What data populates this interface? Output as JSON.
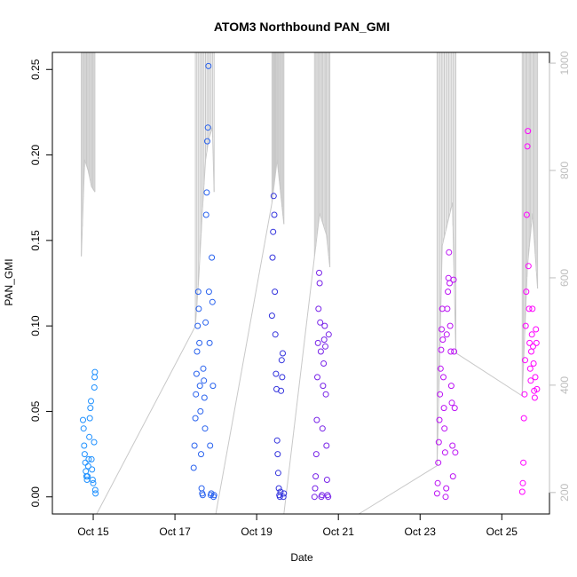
{
  "chart_data": {
    "type": "scatter",
    "title": "ATOM3 Northbound PAN_GMI",
    "xlabel": "Date",
    "ylabel": "PAN_GMI",
    "x_tick_labels": [
      "Oct 15",
      "Oct 17",
      "Oct 19",
      "Oct 21",
      "Oct 23",
      "Oct 25"
    ],
    "x_tick_dates": [
      "2016-10-15",
      "2016-10-17",
      "2016-10-19",
      "2016-10-21",
      "2016-10-23",
      "2016-10-25"
    ],
    "xlim": [
      "2016-10-14 00:00",
      "2016-10-26 04:00"
    ],
    "ylim": [
      -0.01,
      0.26
    ],
    "y_ticks": [
      "0.00",
      "0.05",
      "0.10",
      "0.15",
      "0.20",
      "0.25"
    ],
    "y2_ticks": [
      "200",
      "400",
      "600",
      "800",
      "1000"
    ],
    "y2lim": [
      1020,
      160
    ],
    "y2_reversed": true,
    "grid": false,
    "legend": "none",
    "colors": {
      "series_start": "#1e90ff",
      "series_mid": "#3333dd",
      "series_end": "#ff00ff",
      "altitude": "#c8c8c8"
    },
    "series": [
      {
        "points": [
          [
            "2016-10-14 18:00",
            0.045
          ],
          [
            "2016-10-14 18:20",
            0.04
          ],
          [
            "2016-10-14 18:40",
            0.03
          ],
          [
            "2016-10-14 19:00",
            0.025
          ],
          [
            "2016-10-14 19:20",
            0.02
          ],
          [
            "2016-10-14 19:40",
            0.015
          ],
          [
            "2016-10-14 20:00",
            0.012
          ],
          [
            "2016-10-14 20:20",
            0.01
          ],
          [
            "2016-10-14 20:40",
            0.012
          ],
          [
            "2016-10-14 21:00",
            0.018
          ],
          [
            "2016-10-14 21:20",
            0.022
          ],
          [
            "2016-10-14 21:40",
            0.035
          ],
          [
            "2016-10-14 22:00",
            0.046
          ],
          [
            "2016-10-14 22:20",
            0.052
          ],
          [
            "2016-10-14 22:40",
            0.056
          ],
          [
            "2016-10-14 23:00",
            0.022
          ],
          [
            "2016-10-14 23:20",
            0.016
          ],
          [
            "2016-10-14 23:40",
            0.01
          ],
          [
            "2016-10-15 00:00",
            0.008
          ],
          [
            "2016-10-15 00:30",
            0.032
          ],
          [
            "2016-10-15 00:40",
            0.064
          ],
          [
            "2016-10-15 00:50",
            0.07
          ],
          [
            "2016-10-15 01:00",
            0.073
          ],
          [
            "2016-10-15 01:10",
            0.004
          ],
          [
            "2016-10-15 01:20",
            0.002
          ]
        ]
      },
      {
        "points": [
          [
            "2016-10-17 11:00",
            0.017
          ],
          [
            "2016-10-17 11:30",
            0.03
          ],
          [
            "2016-10-17 12:00",
            0.046
          ],
          [
            "2016-10-17 12:20",
            0.06
          ],
          [
            "2016-10-17 12:40",
            0.072
          ],
          [
            "2016-10-17 13:00",
            0.085
          ],
          [
            "2016-10-17 13:20",
            0.1
          ],
          [
            "2016-10-17 13:40",
            0.12
          ],
          [
            "2016-10-17 14:00",
            0.11
          ],
          [
            "2016-10-17 14:20",
            0.09
          ],
          [
            "2016-10-17 14:40",
            0.065
          ],
          [
            "2016-10-17 15:00",
            0.05
          ],
          [
            "2016-10-17 15:20",
            0.025
          ],
          [
            "2016-10-17 15:40",
            0.005
          ],
          [
            "2016-10-17 16:00",
            0.002
          ],
          [
            "2016-10-17 16:20",
            0.001
          ],
          [
            "2016-10-17 16:40",
            0.075
          ],
          [
            "2016-10-17 17:00",
            0.068
          ],
          [
            "2016-10-17 17:20",
            0.058
          ],
          [
            "2016-10-17 17:40",
            0.04
          ],
          [
            "2016-10-17 18:00",
            0.102
          ],
          [
            "2016-10-17 18:20",
            0.165
          ],
          [
            "2016-10-17 18:40",
            0.178
          ],
          [
            "2016-10-17 19:00",
            0.208
          ],
          [
            "2016-10-17 19:20",
            0.216
          ],
          [
            "2016-10-17 19:40",
            0.252
          ],
          [
            "2016-10-17 20:00",
            0.12
          ],
          [
            "2016-10-17 20:20",
            0.09
          ],
          [
            "2016-10-17 20:40",
            0.03
          ],
          [
            "2016-10-17 21:00",
            0.001
          ],
          [
            "2016-10-17 21:20",
            0.002
          ],
          [
            "2016-10-17 21:40",
            0.14
          ],
          [
            "2016-10-17 22:00",
            0.114
          ],
          [
            "2016-10-17 22:20",
            0.065
          ],
          [
            "2016-10-17 22:40",
            0.0
          ],
          [
            "2016-10-17 23:00",
            0.001
          ]
        ]
      },
      {
        "points": [
          [
            "2016-10-19 09:00",
            0.106
          ],
          [
            "2016-10-19 09:20",
            0.14
          ],
          [
            "2016-10-19 09:40",
            0.155
          ],
          [
            "2016-10-19 10:00",
            0.176
          ],
          [
            "2016-10-19 10:20",
            0.165
          ],
          [
            "2016-10-19 10:40",
            0.12
          ],
          [
            "2016-10-19 11:00",
            0.095
          ],
          [
            "2016-10-19 11:20",
            0.072
          ],
          [
            "2016-10-19 11:40",
            0.063
          ],
          [
            "2016-10-19 12:00",
            0.033
          ],
          [
            "2016-10-19 12:20",
            0.025
          ],
          [
            "2016-10-19 12:40",
            0.014
          ],
          [
            "2016-10-19 13:00",
            0.005
          ],
          [
            "2016-10-19 13:20",
            0.001
          ],
          [
            "2016-10-19 13:40",
            0.0
          ],
          [
            "2016-10-19 14:00",
            0.003
          ],
          [
            "2016-10-19 14:20",
            0.062
          ],
          [
            "2016-10-19 14:40",
            0.08
          ],
          [
            "2016-10-19 15:00",
            0.07
          ],
          [
            "2016-10-19 15:20",
            0.084
          ],
          [
            "2016-10-19 15:40",
            0.0
          ],
          [
            "2016-10-19 16:00",
            0.002
          ]
        ]
      },
      {
        "points": [
          [
            "2016-10-20 10:00",
            0.0
          ],
          [
            "2016-10-20 10:20",
            0.005
          ],
          [
            "2016-10-20 10:40",
            0.012
          ],
          [
            "2016-10-20 11:00",
            0.025
          ],
          [
            "2016-10-20 11:20",
            0.045
          ],
          [
            "2016-10-20 11:40",
            0.07
          ],
          [
            "2016-10-20 12:00",
            0.09
          ],
          [
            "2016-10-20 12:20",
            0.11
          ],
          [
            "2016-10-20 12:40",
            0.131
          ],
          [
            "2016-10-20 13:00",
            0.125
          ],
          [
            "2016-10-20 13:20",
            0.102
          ],
          [
            "2016-10-20 13:40",
            0.085
          ],
          [
            "2016-10-20 14:00",
            0.0
          ],
          [
            "2016-10-20 14:20",
            0.001
          ],
          [
            "2016-10-20 14:40",
            0.04
          ],
          [
            "2016-10-20 15:00",
            0.065
          ],
          [
            "2016-10-20 15:20",
            0.078
          ],
          [
            "2016-10-20 15:40",
            0.092
          ],
          [
            "2016-10-20 16:00",
            0.1
          ],
          [
            "2016-10-20 16:20",
            0.088
          ],
          [
            "2016-10-20 16:40",
            0.06
          ],
          [
            "2016-10-20 17:00",
            0.03
          ],
          [
            "2016-10-20 17:20",
            0.01
          ],
          [
            "2016-10-20 17:40",
            0.001
          ],
          [
            "2016-10-20 18:00",
            0.0
          ],
          [
            "2016-10-20 18:20",
            0.095
          ]
        ]
      },
      {
        "points": [
          [
            "2016-10-23 10:00",
            0.002
          ],
          [
            "2016-10-23 10:20",
            0.008
          ],
          [
            "2016-10-23 10:40",
            0.02
          ],
          [
            "2016-10-23 11:00",
            0.032
          ],
          [
            "2016-10-23 11:20",
            0.045
          ],
          [
            "2016-10-23 11:40",
            0.06
          ],
          [
            "2016-10-23 12:00",
            0.075
          ],
          [
            "2016-10-23 12:20",
            0.086
          ],
          [
            "2016-10-23 12:40",
            0.098
          ],
          [
            "2016-10-23 13:00",
            0.11
          ],
          [
            "2016-10-23 13:20",
            0.092
          ],
          [
            "2016-10-23 13:40",
            0.07
          ],
          [
            "2016-10-23 14:00",
            0.052
          ],
          [
            "2016-10-23 14:20",
            0.04
          ],
          [
            "2016-10-23 14:40",
            0.026
          ],
          [
            "2016-10-23 15:00",
            0.0
          ],
          [
            "2016-10-23 15:20",
            0.005
          ],
          [
            "2016-10-23 15:40",
            0.095
          ],
          [
            "2016-10-23 16:00",
            0.11
          ],
          [
            "2016-10-23 16:20",
            0.12
          ],
          [
            "2016-10-23 16:40",
            0.128
          ],
          [
            "2016-10-23 17:00",
            0.143
          ],
          [
            "2016-10-23 17:20",
            0.125
          ],
          [
            "2016-10-23 17:40",
            0.1
          ],
          [
            "2016-10-23 18:00",
            0.085
          ],
          [
            "2016-10-23 18:20",
            0.065
          ],
          [
            "2016-10-23 18:40",
            0.055
          ],
          [
            "2016-10-23 19:00",
            0.03
          ],
          [
            "2016-10-23 19:20",
            0.012
          ],
          [
            "2016-10-23 19:40",
            0.127
          ],
          [
            "2016-10-23 20:00",
            0.085
          ],
          [
            "2016-10-23 20:20",
            0.052
          ],
          [
            "2016-10-23 20:40",
            0.026
          ]
        ]
      },
      {
        "points": [
          [
            "2016-10-25 12:00",
            0.003
          ],
          [
            "2016-10-25 12:20",
            0.008
          ],
          [
            "2016-10-25 12:40",
            0.02
          ],
          [
            "2016-10-25 13:00",
            0.046
          ],
          [
            "2016-10-25 13:20",
            0.06
          ],
          [
            "2016-10-25 13:40",
            0.08
          ],
          [
            "2016-10-25 14:00",
            0.1
          ],
          [
            "2016-10-25 14:20",
            0.12
          ],
          [
            "2016-10-25 14:40",
            0.165
          ],
          [
            "2016-10-25 15:00",
            0.205
          ],
          [
            "2016-10-25 15:20",
            0.214
          ],
          [
            "2016-10-25 15:40",
            0.135
          ],
          [
            "2016-10-25 16:00",
            0.11
          ],
          [
            "2016-10-25 16:20",
            0.09
          ],
          [
            "2016-10-25 16:40",
            0.075
          ],
          [
            "2016-10-25 17:00",
            0.068
          ],
          [
            "2016-10-25 17:20",
            0.085
          ],
          [
            "2016-10-25 17:40",
            0.095
          ],
          [
            "2016-10-25 18:00",
            0.11
          ],
          [
            "2016-10-25 18:20",
            0.088
          ],
          [
            "2016-10-25 18:40",
            0.078
          ],
          [
            "2016-10-25 19:00",
            0.062
          ],
          [
            "2016-10-25 19:20",
            0.058
          ],
          [
            "2016-10-25 19:40",
            0.07
          ],
          [
            "2016-10-25 20:00",
            0.098
          ],
          [
            "2016-10-25 20:20",
            0.09
          ],
          [
            "2016-10-25 20:40",
            0.063
          ]
        ]
      }
    ],
    "altitude_line": {
      "y_axis": "right",
      "flights": [
        {
          "x": [
            "2016-10-14 17:00",
            "2016-10-14 19:00",
            "2016-10-14 21:00",
            "2016-10-14 23:00",
            "2016-10-15 01:00"
          ],
          "y": [
            640,
            820,
            800,
            770,
            760
          ]
        },
        {
          "x": [
            "2016-10-17 12:00",
            "2016-10-17 14:00",
            "2016-10-17 16:00",
            "2016-10-17 18:00",
            "2016-10-17 20:00",
            "2016-10-17 22:00",
            "2016-10-17 23:00"
          ],
          "y": [
            510,
            600,
            720,
            820,
            860,
            880,
            760
          ]
        },
        {
          "x": [
            "2016-10-19 09:00",
            "2016-10-19 12:00",
            "2016-10-19 16:00"
          ],
          "y": [
            740,
            820,
            700
          ]
        },
        {
          "x": [
            "2016-10-20 10:00",
            "2016-10-20 13:00",
            "2016-10-20 17:00",
            "2016-10-20 19:00"
          ],
          "y": [
            640,
            720,
            680,
            620
          ]
        },
        {
          "x": [
            "2016-10-23 10:00",
            "2016-10-23 13:00",
            "2016-10-23 16:00",
            "2016-10-23 19:00",
            "2016-10-23 21:00"
          ],
          "y": [
            250,
            660,
            700,
            740,
            460
          ]
        },
        {
          "x": [
            "2016-10-25 12:00",
            "2016-10-25 15:00",
            "2016-10-25 18:00",
            "2016-10-25 21:00"
          ],
          "y": [
            380,
            620,
            720,
            580
          ]
        }
      ],
      "transits": [
        {
          "x": [
            "2016-10-15 02:00",
            "2016-10-17 12:00"
          ],
          "y": [
            160,
            510
          ]
        },
        {
          "x": [
            "2016-10-18 00:00",
            "2016-10-19 09:00"
          ],
          "y": [
            160,
            740
          ]
        },
        {
          "x": [
            "2016-10-19 16:00",
            "2016-10-20 10:00"
          ],
          "y": [
            160,
            640
          ]
        },
        {
          "x": [
            "2016-10-21 12:00",
            "2016-10-23 10:00"
          ],
          "y": [
            160,
            250
          ]
        },
        {
          "x": [
            "2016-10-23 21:00",
            "2016-10-25 12:00"
          ],
          "y": [
            460,
            380
          ]
        }
      ]
    }
  }
}
